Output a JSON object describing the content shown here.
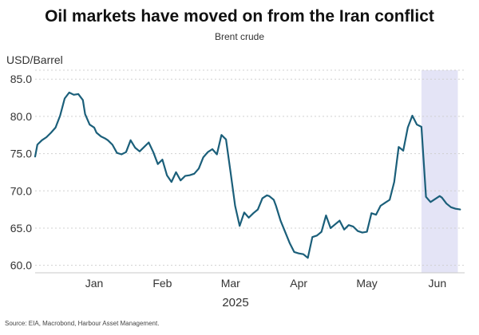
{
  "chart_data": {
    "type": "line",
    "title": "Oil markets have moved on from the Iran conflict",
    "subtitle": "Brent crude",
    "ylabel": "USD/Barrel",
    "xlabel": "2025",
    "source": "Source: EIA, Macrobond, Harbour Asset Management.",
    "ylim": [
      59,
      86.2
    ],
    "yticks": [
      60.0,
      65.0,
      70.0,
      75.0,
      80.0,
      85.0
    ],
    "ytick_labels": [
      "60.0",
      "65.0",
      "70.0",
      "75.0",
      "80.0",
      "85.0"
    ],
    "xlim": [
      "2024-12-20",
      "2025-06-27"
    ],
    "xtick_labels": [
      {
        "label": "Jan",
        "date": "2025-01-15"
      },
      {
        "label": "Feb",
        "date": "2025-02-14"
      },
      {
        "label": "Mar",
        "date": "2025-03-16"
      },
      {
        "label": "Apr",
        "date": "2025-04-15"
      },
      {
        "label": "May",
        "date": "2025-05-15"
      },
      {
        "label": "Jun",
        "date": "2025-06-15"
      }
    ],
    "grid": true,
    "line_color": "#1b5f7a",
    "highlight": {
      "start": "2025-06-08",
      "end": "2025-06-24",
      "color": "#e4e4f6"
    },
    "series": [
      {
        "x": [
          "2024-12-20",
          "2024-12-21",
          "2024-12-23",
          "2024-12-25",
          "2024-12-27",
          "2024-12-29",
          "2024-12-31",
          "2025-01-02",
          "2025-01-04",
          "2025-01-06",
          "2025-01-08",
          "2025-01-10",
          "2025-01-11",
          "2025-01-13",
          "2025-01-15",
          "2025-01-16",
          "2025-01-18",
          "2025-01-20",
          "2025-01-21",
          "2025-01-23",
          "2025-01-25",
          "2025-01-27",
          "2025-01-29",
          "2025-01-31",
          "2025-02-02",
          "2025-02-04",
          "2025-02-06",
          "2025-02-08",
          "2025-02-10",
          "2025-02-12",
          "2025-02-14",
          "2025-02-16",
          "2025-02-18",
          "2025-02-20",
          "2025-02-22",
          "2025-02-24",
          "2025-02-26",
          "2025-02-28",
          "2025-03-02",
          "2025-03-04",
          "2025-03-06",
          "2025-03-08",
          "2025-03-10",
          "2025-03-12",
          "2025-03-14",
          "2025-03-16",
          "2025-03-18",
          "2025-03-20",
          "2025-03-22",
          "2025-03-24",
          "2025-03-26",
          "2025-03-28",
          "2025-03-30",
          "2025-04-01",
          "2025-04-02",
          "2025-04-04",
          "2025-04-05",
          "2025-04-07",
          "2025-04-09",
          "2025-04-11",
          "2025-04-13",
          "2025-04-15",
          "2025-04-17",
          "2025-04-19",
          "2025-04-21",
          "2025-04-23",
          "2025-04-25",
          "2025-04-27",
          "2025-04-29",
          "2025-05-01",
          "2025-05-03",
          "2025-05-05",
          "2025-05-07",
          "2025-05-09",
          "2025-05-11",
          "2025-05-13",
          "2025-05-15",
          "2025-05-17",
          "2025-05-19",
          "2025-05-21",
          "2025-05-23",
          "2025-05-25",
          "2025-05-27",
          "2025-05-29",
          "2025-05-31",
          "2025-06-02",
          "2025-06-04",
          "2025-06-06",
          "2025-06-08",
          "2025-06-10",
          "2025-06-12",
          "2025-06-14",
          "2025-06-16",
          "2025-06-17",
          "2025-06-19",
          "2025-06-21",
          "2025-06-23",
          "2025-06-25"
        ],
        "y": [
          74.6,
          76.2,
          76.8,
          77.2,
          77.8,
          78.5,
          80.1,
          82.4,
          83.2,
          82.9,
          83.0,
          82.2,
          80.3,
          78.9,
          78.5,
          77.8,
          77.3,
          77.0,
          76.8,
          76.2,
          75.1,
          74.9,
          75.2,
          76.8,
          75.8,
          75.3,
          75.9,
          76.5,
          75.2,
          73.6,
          74.2,
          72.1,
          71.2,
          72.5,
          71.4,
          72.0,
          72.1,
          72.3,
          73.0,
          74.5,
          75.2,
          75.6,
          74.9,
          77.5,
          76.9,
          72.5,
          68.0,
          65.3,
          67.1,
          66.4,
          67.0,
          67.5,
          69.0,
          69.4,
          69.3,
          68.8,
          68.0,
          66.0,
          64.5,
          63.0,
          61.8,
          61.6,
          61.5,
          61.0,
          63.8,
          64.0,
          64.5,
          66.7,
          65.0,
          65.5,
          66.0,
          64.8,
          65.4,
          65.2,
          64.6,
          64.4,
          64.5,
          67.0,
          66.8,
          68.0,
          68.4,
          68.8,
          71.2,
          75.9,
          75.4,
          78.5,
          80.1,
          78.9,
          78.6,
          69.2,
          68.5,
          68.9,
          69.3,
          69.1,
          68.3,
          67.8,
          67.6,
          67.5
        ]
      }
    ]
  }
}
